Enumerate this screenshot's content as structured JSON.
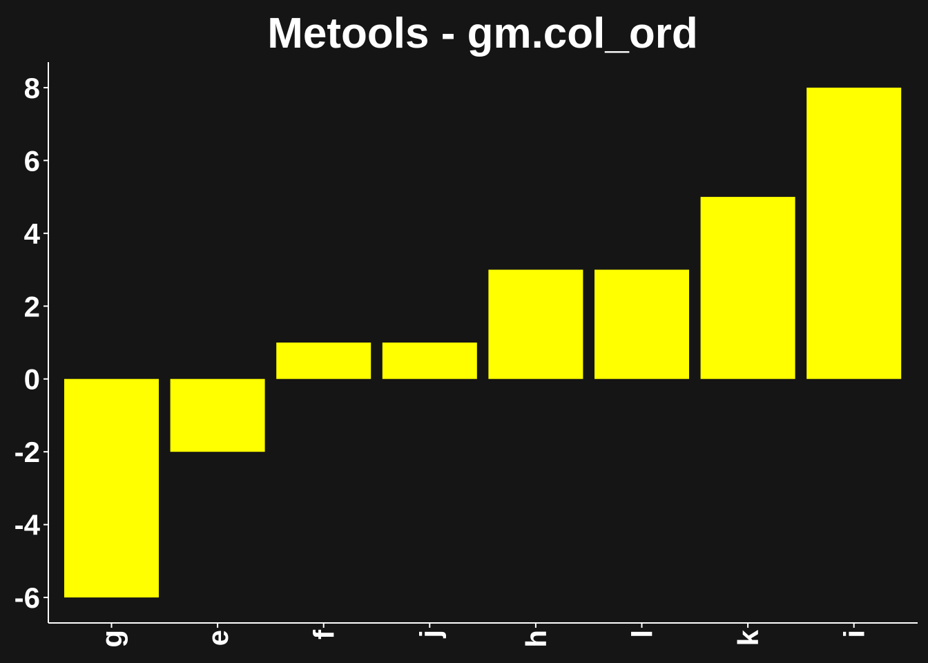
{
  "chart_data": {
    "type": "bar",
    "title": "Metools - gm.col_ord",
    "xlabel": "",
    "ylabel": "",
    "categories": [
      "g",
      "e",
      "f",
      "j",
      "h",
      "l",
      "k",
      "i"
    ],
    "values": [
      -6,
      -2,
      1,
      1,
      3,
      3,
      5,
      8
    ],
    "ylim": [
      -6.7,
      8.7
    ],
    "yticks": [
      -6,
      -4,
      -2,
      0,
      2,
      4,
      6,
      8
    ],
    "ytick_labels": [
      "-6",
      "-4",
      "-2",
      "0",
      "2",
      "4",
      "6",
      "8"
    ],
    "x_tick_rotation": -90,
    "grid": false,
    "legend": "none",
    "colors": {
      "bar": "#ffff00",
      "background": "#151515",
      "axis": "#ffffff",
      "text": "#ffffff"
    }
  }
}
